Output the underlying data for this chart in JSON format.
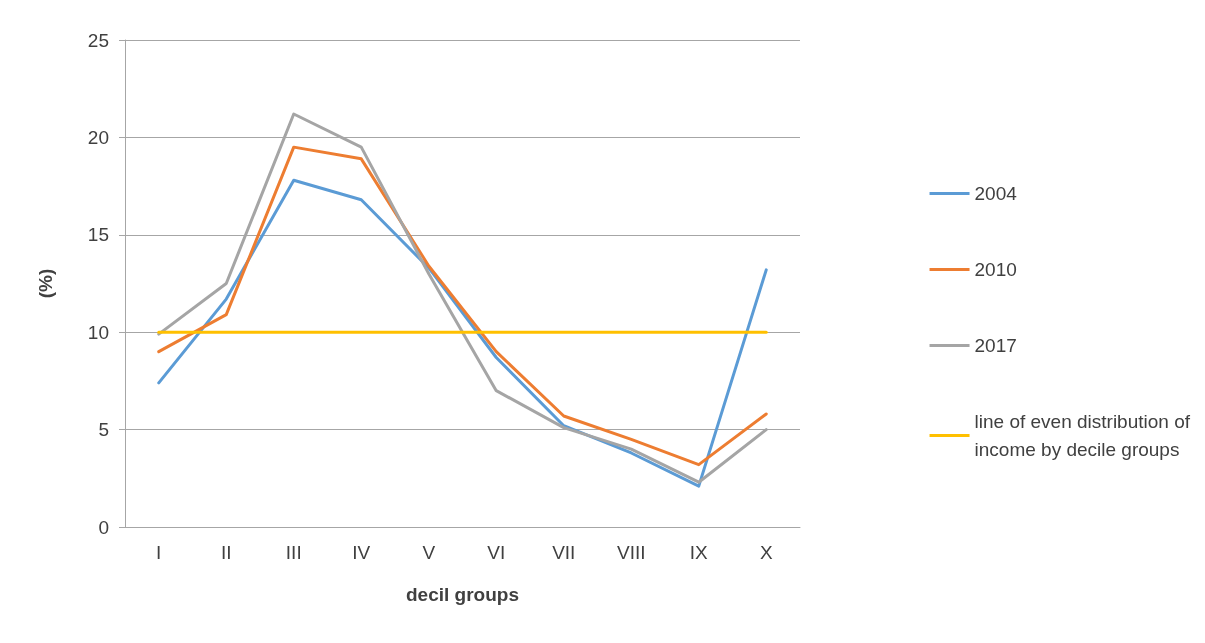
{
  "chart_data": {
    "type": "line",
    "xlabel": "decil groups",
    "ylabel": "(%)",
    "categories": [
      "I",
      "II",
      "III",
      "IV",
      "V",
      "VI",
      "VII",
      "VIII",
      "IX",
      "X"
    ],
    "series": [
      {
        "name": "2004",
        "color": "#5b9bd5",
        "values": [
          7.4,
          11.7,
          17.8,
          16.8,
          13.3,
          8.7,
          5.2,
          3.8,
          2.1,
          13.2
        ]
      },
      {
        "name": "2010",
        "color": "#ed7d31",
        "values": [
          9.0,
          10.9,
          19.5,
          18.9,
          13.4,
          9.0,
          5.7,
          4.5,
          3.2,
          5.8
        ]
      },
      {
        "name": "2017",
        "color": "#a5a5a5",
        "values": [
          9.9,
          12.5,
          21.2,
          19.5,
          13.0,
          7.0,
          5.1,
          4.0,
          2.3,
          5.0
        ]
      },
      {
        "name": "line of even distribution of\nincome by decile groups",
        "color": "#ffc000",
        "values": [
          10,
          10,
          10,
          10,
          10,
          10,
          10,
          10,
          10,
          10
        ]
      }
    ],
    "ylim": [
      0,
      25
    ],
    "yticks": [
      0,
      5,
      10,
      15,
      20,
      25
    ],
    "grid": "y",
    "legend": "right",
    "marker": "none",
    "line_style": "solid"
  }
}
